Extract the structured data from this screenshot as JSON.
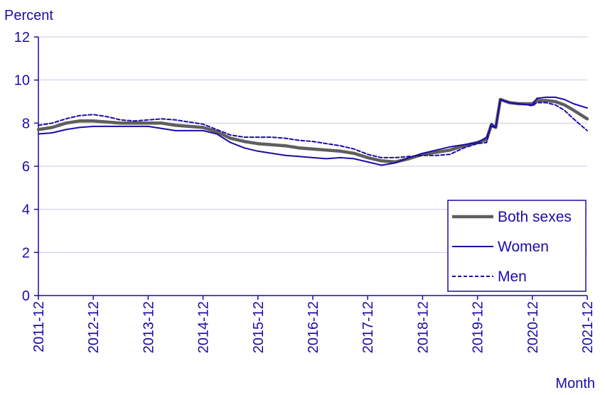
{
  "chart_data": {
    "type": "line",
    "ylabel": "Percent",
    "xlabel": "Month",
    "ylim": [
      0,
      12
    ],
    "yticks": [
      0,
      2,
      4,
      6,
      8,
      10,
      12
    ],
    "xlim": [
      "2011-12",
      "2021-12"
    ],
    "xticks": [
      "2011-12",
      "2012-12",
      "2013-12",
      "2014-12",
      "2015-12",
      "2016-12",
      "2017-12",
      "2018-12",
      "2019-12",
      "2020-12",
      "2021-12"
    ],
    "grid": true,
    "legend_position": "bottom-right",
    "series": [
      {
        "name": "Both sexes",
        "color": "#5f5f5f",
        "style": "solid-thick",
        "points": [
          [
            "2011-12",
            7.7
          ],
          [
            "2012-03",
            7.8
          ],
          [
            "2012-06",
            8.0
          ],
          [
            "2012-09",
            8.1
          ],
          [
            "2012-12",
            8.1
          ],
          [
            "2013-03",
            8.05
          ],
          [
            "2013-06",
            8.0
          ],
          [
            "2013-09",
            8.0
          ],
          [
            "2013-12",
            8.0
          ],
          [
            "2014-03",
            8.0
          ],
          [
            "2014-06",
            7.9
          ],
          [
            "2014-09",
            7.85
          ],
          [
            "2014-12",
            7.8
          ],
          [
            "2015-03",
            7.6
          ],
          [
            "2015-06",
            7.3
          ],
          [
            "2015-09",
            7.15
          ],
          [
            "2015-12",
            7.05
          ],
          [
            "2016-03",
            7.0
          ],
          [
            "2016-06",
            6.95
          ],
          [
            "2016-09",
            6.85
          ],
          [
            "2016-12",
            6.8
          ],
          [
            "2017-03",
            6.75
          ],
          [
            "2017-06",
            6.7
          ],
          [
            "2017-09",
            6.6
          ],
          [
            "2017-12",
            6.4
          ],
          [
            "2018-03",
            6.25
          ],
          [
            "2018-06",
            6.2
          ],
          [
            "2018-09",
            6.35
          ],
          [
            "2018-12",
            6.55
          ],
          [
            "2019-03",
            6.65
          ],
          [
            "2019-06",
            6.75
          ],
          [
            "2019-09",
            6.95
          ],
          [
            "2019-12",
            7.1
          ],
          [
            "2020-02",
            7.25
          ],
          [
            "2020-03",
            7.9
          ],
          [
            "2020-04",
            7.8
          ],
          [
            "2020-05",
            9.1
          ],
          [
            "2020-07",
            8.95
          ],
          [
            "2020-09",
            8.9
          ],
          [
            "2020-11",
            8.9
          ],
          [
            "2020-12",
            8.9
          ],
          [
            "2021-01",
            9.05
          ],
          [
            "2021-03",
            9.05
          ],
          [
            "2021-05",
            9.0
          ],
          [
            "2021-07",
            8.85
          ],
          [
            "2021-09",
            8.6
          ],
          [
            "2021-12",
            8.2
          ]
        ]
      },
      {
        "name": "Women",
        "color": "#1a0ca8",
        "style": "solid",
        "points": [
          [
            "2011-12",
            7.5
          ],
          [
            "2012-03",
            7.55
          ],
          [
            "2012-06",
            7.7
          ],
          [
            "2012-09",
            7.8
          ],
          [
            "2012-12",
            7.85
          ],
          [
            "2013-03",
            7.85
          ],
          [
            "2013-06",
            7.85
          ],
          [
            "2013-09",
            7.85
          ],
          [
            "2013-12",
            7.85
          ],
          [
            "2014-03",
            7.75
          ],
          [
            "2014-06",
            7.65
          ],
          [
            "2014-09",
            7.65
          ],
          [
            "2014-12",
            7.65
          ],
          [
            "2015-03",
            7.5
          ],
          [
            "2015-06",
            7.1
          ],
          [
            "2015-09",
            6.85
          ],
          [
            "2015-12",
            6.7
          ],
          [
            "2016-03",
            6.6
          ],
          [
            "2016-06",
            6.5
          ],
          [
            "2016-09",
            6.45
          ],
          [
            "2016-12",
            6.4
          ],
          [
            "2017-03",
            6.35
          ],
          [
            "2017-06",
            6.4
          ],
          [
            "2017-09",
            6.35
          ],
          [
            "2017-12",
            6.2
          ],
          [
            "2018-03",
            6.05
          ],
          [
            "2018-06",
            6.15
          ],
          [
            "2018-09",
            6.4
          ],
          [
            "2018-12",
            6.6
          ],
          [
            "2019-03",
            6.75
          ],
          [
            "2019-06",
            6.9
          ],
          [
            "2019-09",
            7.0
          ],
          [
            "2019-12",
            7.1
          ],
          [
            "2020-02",
            7.35
          ],
          [
            "2020-03",
            7.85
          ],
          [
            "2020-04",
            7.8
          ],
          [
            "2020-05",
            9.1
          ],
          [
            "2020-07",
            8.95
          ],
          [
            "2020-09",
            8.9
          ],
          [
            "2020-11",
            8.85
          ],
          [
            "2020-12",
            8.85
          ],
          [
            "2021-01",
            9.15
          ],
          [
            "2021-03",
            9.2
          ],
          [
            "2021-05",
            9.2
          ],
          [
            "2021-07",
            9.1
          ],
          [
            "2021-09",
            8.9
          ],
          [
            "2021-12",
            8.7
          ]
        ]
      },
      {
        "name": "Men",
        "color": "#1a0ca8",
        "style": "dashed",
        "points": [
          [
            "2011-12",
            7.9
          ],
          [
            "2012-03",
            8.0
          ],
          [
            "2012-06",
            8.2
          ],
          [
            "2012-09",
            8.35
          ],
          [
            "2012-12",
            8.4
          ],
          [
            "2013-03",
            8.3
          ],
          [
            "2013-06",
            8.15
          ],
          [
            "2013-09",
            8.1
          ],
          [
            "2013-12",
            8.15
          ],
          [
            "2014-03",
            8.2
          ],
          [
            "2014-06",
            8.15
          ],
          [
            "2014-09",
            8.05
          ],
          [
            "2014-12",
            7.95
          ],
          [
            "2015-03",
            7.7
          ],
          [
            "2015-06",
            7.45
          ],
          [
            "2015-09",
            7.35
          ],
          [
            "2015-12",
            7.35
          ],
          [
            "2016-03",
            7.35
          ],
          [
            "2016-06",
            7.3
          ],
          [
            "2016-09",
            7.2
          ],
          [
            "2016-12",
            7.15
          ],
          [
            "2017-03",
            7.05
          ],
          [
            "2017-06",
            6.95
          ],
          [
            "2017-09",
            6.8
          ],
          [
            "2017-12",
            6.55
          ],
          [
            "2018-03",
            6.4
          ],
          [
            "2018-06",
            6.4
          ],
          [
            "2018-09",
            6.45
          ],
          [
            "2018-12",
            6.5
          ],
          [
            "2019-03",
            6.5
          ],
          [
            "2019-06",
            6.55
          ],
          [
            "2019-09",
            6.85
          ],
          [
            "2019-12",
            7.05
          ],
          [
            "2020-02",
            7.1
          ],
          [
            "2020-03",
            8.0
          ],
          [
            "2020-04",
            7.8
          ],
          [
            "2020-05",
            9.1
          ],
          [
            "2020-07",
            8.95
          ],
          [
            "2020-09",
            8.9
          ],
          [
            "2020-11",
            8.85
          ],
          [
            "2020-12",
            8.8
          ],
          [
            "2021-01",
            8.95
          ],
          [
            "2021-03",
            8.95
          ],
          [
            "2021-05",
            8.85
          ],
          [
            "2021-07",
            8.6
          ],
          [
            "2021-09",
            8.2
          ],
          [
            "2021-12",
            7.65
          ]
        ]
      }
    ]
  }
}
